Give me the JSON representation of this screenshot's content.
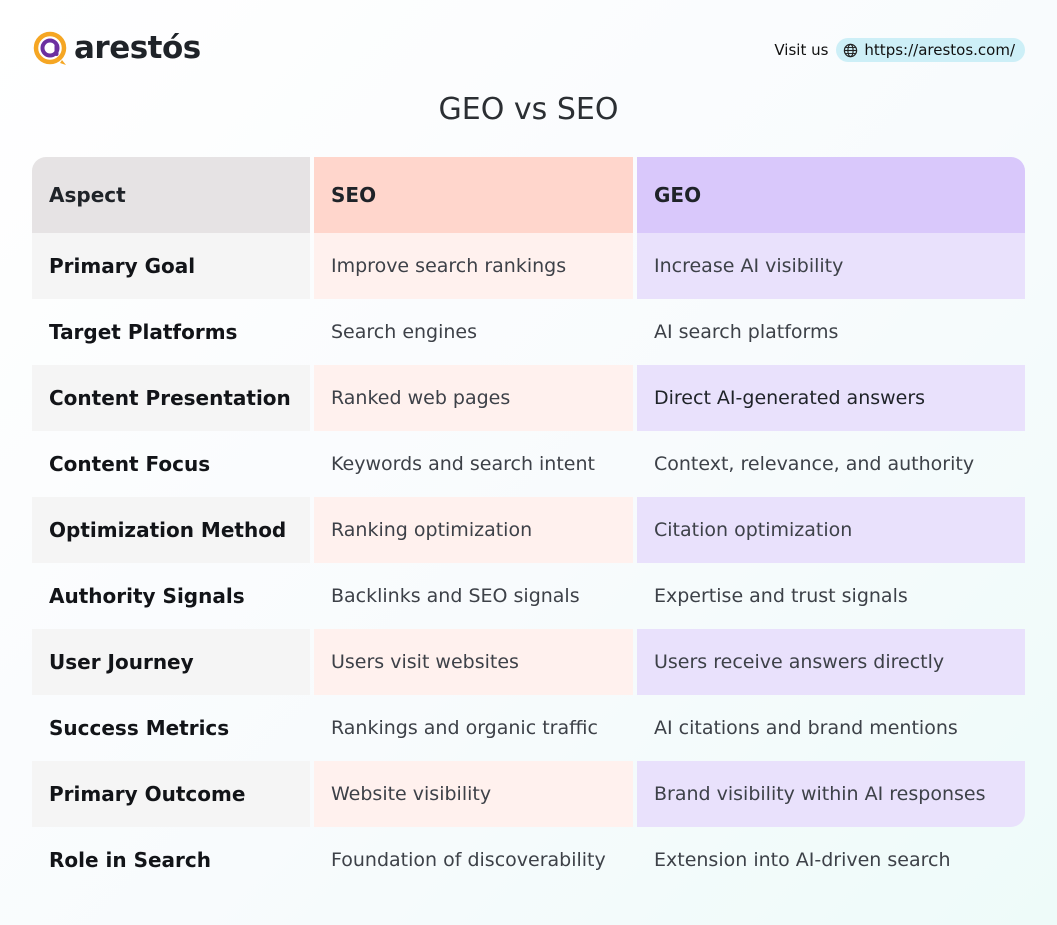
{
  "brand": {
    "name": "arestós",
    "logo_icon": "arestos-logo-icon"
  },
  "visit": {
    "label": "Visit us",
    "url": "https://arestos.com/",
    "icon": "globe-icon"
  },
  "title": "GEO vs SEO",
  "table": {
    "headers": [
      "Aspect",
      "SEO",
      "GEO"
    ],
    "rows": [
      {
        "aspect": "Primary Goal",
        "seo": "Improve search rankings",
        "geo": "Increase AI visibility"
      },
      {
        "aspect": "Target Platforms",
        "seo": "Search engines",
        "geo": "AI search platforms"
      },
      {
        "aspect": "Content Presentation",
        "seo": "Ranked web pages",
        "geo": "Direct AI-generated answers"
      },
      {
        "aspect": "Content Focus",
        "seo": "Keywords and search intent",
        "geo": "Context, relevance, and authority"
      },
      {
        "aspect": "Optimization Method",
        "seo": "Ranking optimization",
        "geo": "Citation optimization"
      },
      {
        "aspect": "Authority Signals",
        "seo": "Backlinks and SEO signals",
        "geo": "Expertise and trust signals"
      },
      {
        "aspect": "User Journey",
        "seo": "Users visit websites",
        "geo": "Users receive answers directly"
      },
      {
        "aspect": "Success Metrics",
        "seo": "Rankings and organic traffic",
        "geo": "AI citations and brand mentions"
      },
      {
        "aspect": "Primary Outcome",
        "seo": "Website visibility",
        "geo": "Brand visibility within AI responses"
      },
      {
        "aspect": "Role in Search",
        "seo": "Foundation of discoverability",
        "geo": "Extension into AI-driven search"
      }
    ]
  },
  "colors": {
    "seo_header": "#ffd6cc",
    "geo_header": "#d9c8fb",
    "aspect_header": "#e6e3e4",
    "seo_row": "#fff1ee",
    "geo_row": "#e9e1fc",
    "aspect_row": "#f5f5f5",
    "logo_orange": "#f5a623",
    "logo_purple": "#6b2fa0",
    "url_pill": "#cdeff7"
  }
}
